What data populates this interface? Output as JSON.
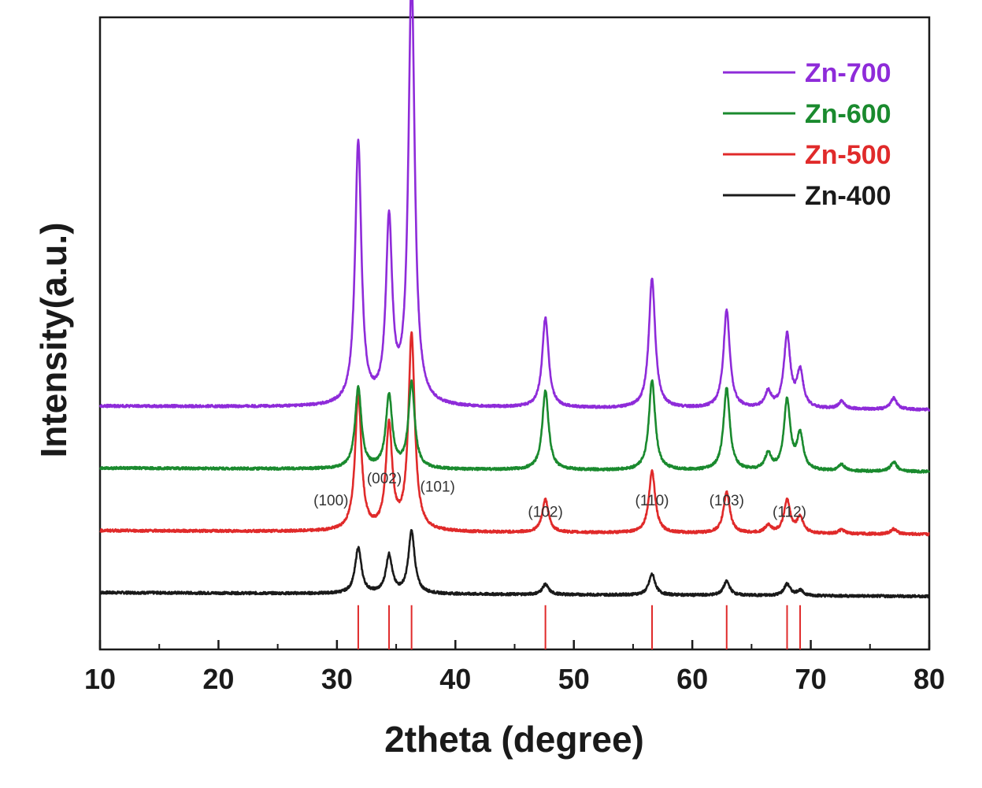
{
  "chart_data": {
    "type": "line",
    "xlabel": "2theta (degree)",
    "ylabel": "Intensity(a.u.)",
    "xlim": [
      10,
      80
    ],
    "xticks": [
      10,
      20,
      30,
      40,
      50,
      60,
      70,
      80
    ],
    "ylim": [
      0,
      1
    ],
    "grid": false,
    "legend_position": "top-right",
    "series": [
      {
        "name": "Zn-700",
        "color": "#8e2bd9",
        "baseline": 0.385,
        "peaks": [
          {
            "x": 31.8,
            "h": 0.415
          },
          {
            "x": 34.4,
            "h": 0.285
          },
          {
            "x": 36.3,
            "h": 0.675
          },
          {
            "x": 47.6,
            "h": 0.142
          },
          {
            "x": 56.6,
            "h": 0.205
          },
          {
            "x": 62.9,
            "h": 0.155
          },
          {
            "x": 66.4,
            "h": 0.025
          },
          {
            "x": 68.0,
            "h": 0.115
          },
          {
            "x": 69.1,
            "h": 0.058
          },
          {
            "x": 72.6,
            "h": 0.012
          },
          {
            "x": 77.0,
            "h": 0.018
          }
        ]
      },
      {
        "name": "Zn-600",
        "color": "#1a8a2e",
        "baseline": 0.287,
        "peaks": [
          {
            "x": 31.8,
            "h": 0.128
          },
          {
            "x": 34.4,
            "h": 0.115
          },
          {
            "x": 36.3,
            "h": 0.135
          },
          {
            "x": 47.6,
            "h": 0.125
          },
          {
            "x": 56.6,
            "h": 0.142
          },
          {
            "x": 62.9,
            "h": 0.13
          },
          {
            "x": 66.4,
            "h": 0.025
          },
          {
            "x": 68.0,
            "h": 0.11
          },
          {
            "x": 69.1,
            "h": 0.055
          },
          {
            "x": 72.6,
            "h": 0.01
          },
          {
            "x": 77.0,
            "h": 0.015
          }
        ]
      },
      {
        "name": "Zn-500",
        "color": "#e02a2a",
        "baseline": 0.188,
        "peaks": [
          {
            "x": 31.8,
            "h": 0.215
          },
          {
            "x": 34.4,
            "h": 0.165
          },
          {
            "x": 36.3,
            "h": 0.31
          },
          {
            "x": 47.6,
            "h": 0.052
          },
          {
            "x": 56.6,
            "h": 0.098
          },
          {
            "x": 62.9,
            "h": 0.065
          },
          {
            "x": 66.4,
            "h": 0.012
          },
          {
            "x": 68.0,
            "h": 0.052
          },
          {
            "x": 69.1,
            "h": 0.025
          },
          {
            "x": 72.6,
            "h": 0.006
          },
          {
            "x": 77.0,
            "h": 0.008
          }
        ]
      },
      {
        "name": "Zn-400",
        "color": "#1a1a1a",
        "baseline": 0.09,
        "peaks": [
          {
            "x": 31.8,
            "h": 0.072
          },
          {
            "x": 34.4,
            "h": 0.06
          },
          {
            "x": 36.3,
            "h": 0.098
          },
          {
            "x": 47.6,
            "h": 0.016
          },
          {
            "x": 56.6,
            "h": 0.033
          },
          {
            "x": 62.9,
            "h": 0.022
          },
          {
            "x": 68.0,
            "h": 0.018
          },
          {
            "x": 69.1,
            "h": 0.008
          }
        ]
      }
    ],
    "reference_lines": {
      "color": "#e02a2a",
      "x": [
        31.8,
        34.4,
        36.3,
        47.6,
        56.6,
        62.9,
        68.0,
        69.1
      ]
    },
    "annotations": [
      {
        "text": "(100)",
        "x": 29.5,
        "y": 0.228
      },
      {
        "text": "(002)",
        "x": 34.0,
        "y": 0.263
      },
      {
        "text": "(101)",
        "x": 38.5,
        "y": 0.25
      },
      {
        "text": "(102)",
        "x": 47.6,
        "y": 0.21
      },
      {
        "text": "(110)",
        "x": 56.6,
        "y": 0.228
      },
      {
        "text": "(103)",
        "x": 62.9,
        "y": 0.228
      },
      {
        "text": "(112)",
        "x": 68.2,
        "y": 0.21
      }
    ]
  }
}
